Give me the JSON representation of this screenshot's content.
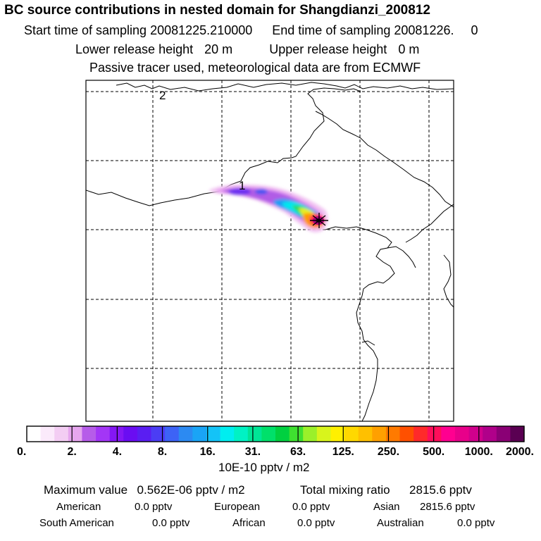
{
  "header": {
    "title": "BC  source contributions in nested domain for Shangdianzi_200812",
    "start_label": "Start time of sampling",
    "start_value": "20081225.210000",
    "end_label": "End time of sampling",
    "end_value": "20081226.",
    "end_suffix": "0",
    "lower_label": "Lower release height",
    "lower_value": "20 m",
    "upper_label": "Upper release height",
    "upper_value": "0 m",
    "note": "Passive tracer used, meteorological data are from ECMWF"
  },
  "map": {
    "labels": [
      "2",
      "1"
    ]
  },
  "colorbar": {
    "ticks": [
      "0.",
      "2.",
      "4.",
      "8.",
      "16.",
      "31.",
      "63.",
      "125.",
      "250.",
      "500.",
      "1000.",
      "2000."
    ],
    "unit": "10E-10 pptv / m2",
    "colors": [
      "#ffffff",
      "#fbeafb",
      "#f3cdf3",
      "#e6a6ee",
      "#b65ce9",
      "#a336f6",
      "#8417f4",
      "#6a0df2",
      "#5a1ef2",
      "#4b3df4",
      "#3d63f6",
      "#2c8af2",
      "#1aa4f6",
      "#14c3f7",
      "#00eef0",
      "#00f2c4",
      "#00e596",
      "#00e06a",
      "#00d040",
      "#3fe030",
      "#9bf02a",
      "#d8f41c",
      "#fff000",
      "#ffd800",
      "#ffc000",
      "#ffa000",
      "#ff7a00",
      "#ff5000",
      "#ff2a2a",
      "#ff0e5a",
      "#ff0090",
      "#e8008a",
      "#d0008c",
      "#b0008a",
      "#8a0075",
      "#5a0052"
    ]
  },
  "stats": {
    "max_label": "Maximum value",
    "max_value": "0.562E-06 pptv / m2",
    "total_label": "Total mixing ratio",
    "total_value": "2815.6 pptv",
    "regions": [
      {
        "name": "American",
        "value": "0.0 pptv"
      },
      {
        "name": "European",
        "value": "0.0 pptv"
      },
      {
        "name": "Asian",
        "value": "2815.6 pptv"
      },
      {
        "name": "South American",
        "value": "0.0 pptv"
      },
      {
        "name": "African",
        "value": "0.0 pptv"
      },
      {
        "name": "Australian",
        "value": "0.0 pptv"
      }
    ]
  }
}
